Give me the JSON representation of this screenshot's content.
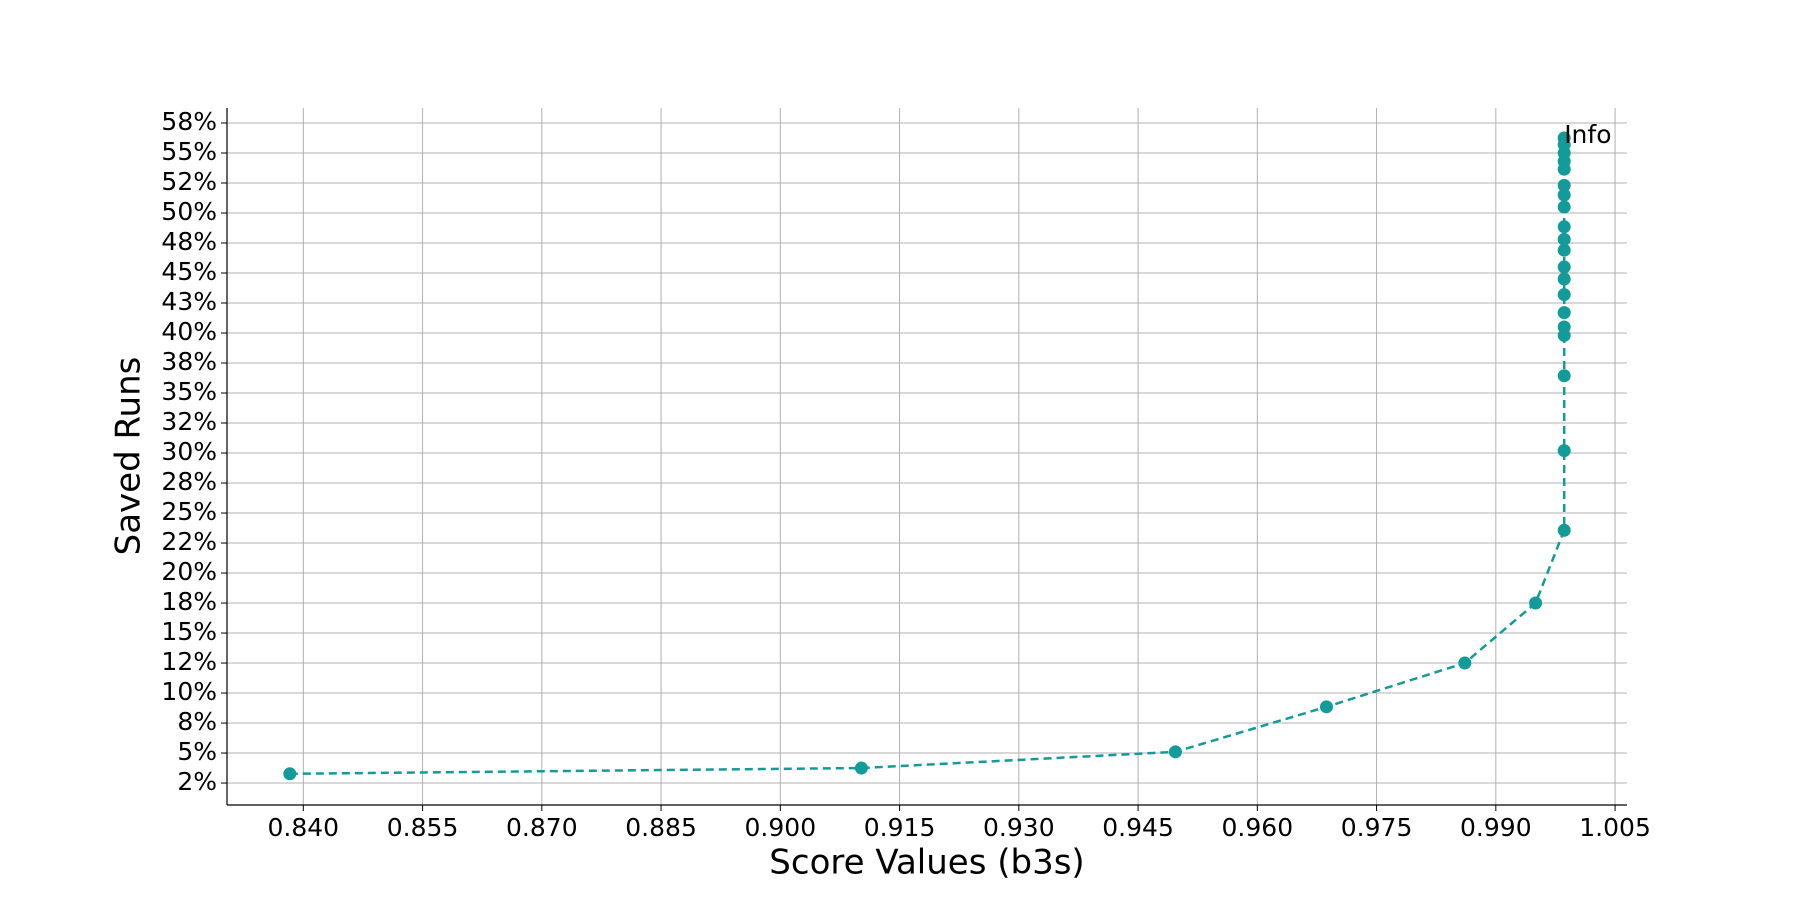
{
  "chart_data": {
    "type": "line",
    "xlabel": "Score Values (b3s)",
    "ylabel": "Saved Runs",
    "annotation": "Info",
    "grid": true,
    "xlim": [
      0.8304,
      1.0065
    ],
    "ylim": [
      0.67,
      58.75
    ],
    "xticks": [
      {
        "value": 0.84,
        "label": "0.840"
      },
      {
        "value": 0.855,
        "label": "0.855"
      },
      {
        "value": 0.87,
        "label": "0.870"
      },
      {
        "value": 0.885,
        "label": "0.885"
      },
      {
        "value": 0.9,
        "label": "0.900"
      },
      {
        "value": 0.915,
        "label": "0.915"
      },
      {
        "value": 0.93,
        "label": "0.930"
      },
      {
        "value": 0.945,
        "label": "0.945"
      },
      {
        "value": 0.96,
        "label": "0.960"
      },
      {
        "value": 0.975,
        "label": "0.975"
      },
      {
        "value": 0.99,
        "label": "0.990"
      },
      {
        "value": 1.005,
        "label": "1.005"
      }
    ],
    "yticks": [
      {
        "value": 2.5,
        "label": "2%"
      },
      {
        "value": 5,
        "label": "5%"
      },
      {
        "value": 7.5,
        "label": "8%"
      },
      {
        "value": 10,
        "label": "10%"
      },
      {
        "value": 12.5,
        "label": "12%"
      },
      {
        "value": 15,
        "label": "15%"
      },
      {
        "value": 17.5,
        "label": "18%"
      },
      {
        "value": 20,
        "label": "20%"
      },
      {
        "value": 22.5,
        "label": "22%"
      },
      {
        "value": 25,
        "label": "25%"
      },
      {
        "value": 27.5,
        "label": "28%"
      },
      {
        "value": 30,
        "label": "30%"
      },
      {
        "value": 32.5,
        "label": "32%"
      },
      {
        "value": 35,
        "label": "35%"
      },
      {
        "value": 37.5,
        "label": "38%"
      },
      {
        "value": 40,
        "label": "40%"
      },
      {
        "value": 42.5,
        "label": "43%"
      },
      {
        "value": 45,
        "label": "45%"
      },
      {
        "value": 47.5,
        "label": "48%"
      },
      {
        "value": 50,
        "label": "50%"
      },
      {
        "value": 52.5,
        "label": "52%"
      },
      {
        "value": 55,
        "label": "55%"
      },
      {
        "value": 57.5,
        "label": "58%"
      }
    ],
    "color": "#129b98",
    "x": [
      0.8383,
      0.9102,
      0.9497,
      0.9687,
      0.9861,
      0.995,
      0.9986,
      0.9986,
      0.9986,
      0.9986,
      0.9986,
      0.9986,
      0.9986,
      0.9986,
      0.9986,
      0.9986,
      0.9986,
      0.9986,
      0.9986,
      0.9986,
      0.9986,
      0.9986,
      0.9986,
      0.9986,
      0.9986,
      0.9986
    ],
    "values": [
      3.27,
      3.75,
      5.1,
      8.85,
      12.5,
      17.5,
      23.56,
      30.2,
      36.44,
      39.8,
      40.5,
      41.7,
      43.2,
      44.5,
      45.5,
      46.9,
      47.8,
      48.85,
      50.5,
      51.5,
      52.3,
      53.65,
      54.3,
      55.0,
      55.7,
      56.25
    ]
  }
}
